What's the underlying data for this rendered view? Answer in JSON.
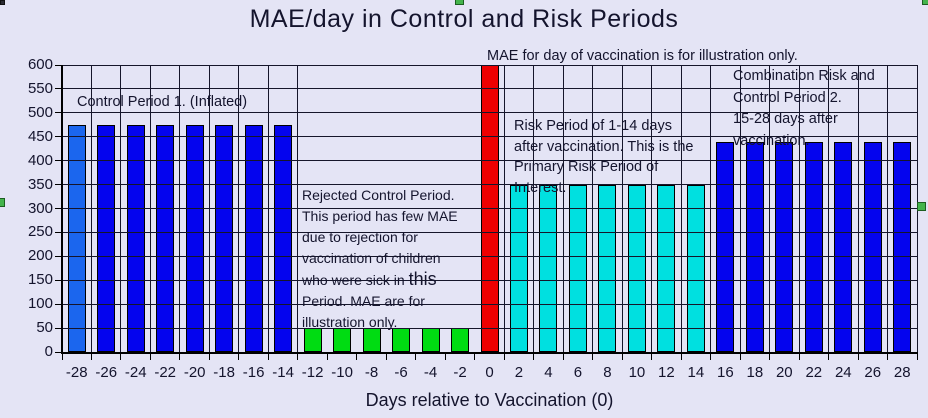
{
  "background": "#E4E4F5",
  "text_color": "#14142D",
  "selection_handle_color": "#44B44C",
  "chart_data": {
    "type": "bar",
    "title": "MAE/day in Control and Risk Periods",
    "xlabel": "Days relative to Vaccination (0)",
    "ylabel": "",
    "ylim": [
      0,
      600
    ],
    "ytick_step": 50,
    "grid": "both",
    "legend": "none",
    "categories": [
      -28,
      -26,
      -24,
      -22,
      -20,
      -18,
      -16,
      -14,
      -12,
      -10,
      -8,
      -6,
      -4,
      -2,
      0,
      2,
      4,
      6,
      8,
      10,
      12,
      14,
      16,
      18,
      20,
      22,
      24,
      26,
      28
    ],
    "values": [
      475,
      475,
      475,
      475,
      475,
      475,
      475,
      475,
      50,
      50,
      50,
      50,
      50,
      50,
      600,
      350,
      350,
      350,
      350,
      350,
      350,
      350,
      440,
      440,
      440,
      440,
      440,
      440,
      440
    ],
    "segment_colors": {
      "control1_first": "#1B66EE",
      "control1": "#0404EE",
      "rejected": "#00DC12",
      "vaccination": "#EE0000",
      "risk": "#00E0E0",
      "control2": "#0404EE"
    },
    "bars": [
      {
        "day": -28,
        "value": 475,
        "segment": "control1_first"
      },
      {
        "day": -26,
        "value": 475,
        "segment": "control1"
      },
      {
        "day": -24,
        "value": 475,
        "segment": "control1"
      },
      {
        "day": -22,
        "value": 475,
        "segment": "control1"
      },
      {
        "day": -20,
        "value": 475,
        "segment": "control1"
      },
      {
        "day": -18,
        "value": 475,
        "segment": "control1"
      },
      {
        "day": -16,
        "value": 475,
        "segment": "control1"
      },
      {
        "day": -14,
        "value": 475,
        "segment": "control1"
      },
      {
        "day": -12,
        "value": 50,
        "segment": "rejected"
      },
      {
        "day": -10,
        "value": 50,
        "segment": "rejected"
      },
      {
        "day": -8,
        "value": 50,
        "segment": "rejected"
      },
      {
        "day": -6,
        "value": 50,
        "segment": "rejected"
      },
      {
        "day": -4,
        "value": 50,
        "segment": "rejected"
      },
      {
        "day": -2,
        "value": 50,
        "segment": "rejected"
      },
      {
        "day": 0,
        "value": 600,
        "segment": "vaccination"
      },
      {
        "day": 2,
        "value": 350,
        "segment": "risk"
      },
      {
        "day": 4,
        "value": 350,
        "segment": "risk"
      },
      {
        "day": 6,
        "value": 350,
        "segment": "risk"
      },
      {
        "day": 8,
        "value": 350,
        "segment": "risk"
      },
      {
        "day": 10,
        "value": 350,
        "segment": "risk"
      },
      {
        "day": 12,
        "value": 350,
        "segment": "risk"
      },
      {
        "day": 14,
        "value": 350,
        "segment": "risk"
      },
      {
        "day": 16,
        "value": 440,
        "segment": "control2"
      },
      {
        "day": 18,
        "value": 440,
        "segment": "control2"
      },
      {
        "day": 20,
        "value": 440,
        "segment": "control2"
      },
      {
        "day": 22,
        "value": 440,
        "segment": "control2"
      },
      {
        "day": 24,
        "value": 440,
        "segment": "control2"
      },
      {
        "day": 26,
        "value": 440,
        "segment": "control2"
      },
      {
        "day": 28,
        "value": 440,
        "segment": "control2"
      }
    ],
    "annotations": [
      {
        "id": "control1",
        "lines": [
          [
            "Control Period 1. (Inflated)"
          ]
        ]
      },
      {
        "id": "vaccination_day",
        "lines": [
          [
            "MAE for day of vaccination is for illustration only."
          ]
        ]
      },
      {
        "id": "rejected",
        "lines": [
          [
            "Rejected Control Period."
          ],
          [
            "This period has few MAE"
          ],
          [
            "due to rejection for"
          ],
          [
            "vaccination of children"
          ],
          [
            "who were sick in ",
            {
              "big": "this"
            }
          ],
          [
            "Period.  MAE are for"
          ],
          [
            "illustration only."
          ]
        ]
      },
      {
        "id": "risk",
        "lines": [
          [
            "Risk Period of 1-14 days"
          ],
          [
            "after vaccination.  This is the"
          ],
          [
            "Primary Risk Period of"
          ],
          [
            "Interest."
          ]
        ]
      },
      {
        "id": "combination",
        "lines": [
          [
            "Combination Risk and"
          ],
          [
            "Control Period 2."
          ],
          [
            "15-28 days after"
          ],
          [
            "vaccination."
          ]
        ]
      }
    ]
  }
}
